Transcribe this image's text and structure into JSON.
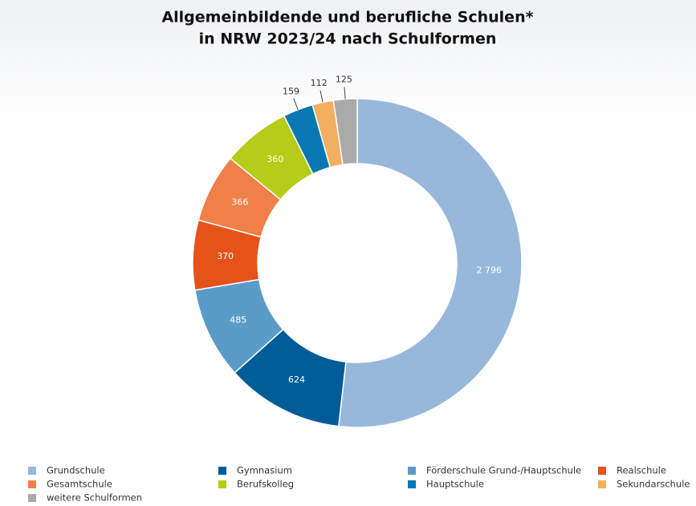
{
  "chart_data": {
    "type": "donut",
    "title": [
      "Allgemeinbildende und berufliche Schulen*",
      "in NRW 2023/24 nach Schulformen"
    ],
    "categories": [
      "Grundschule",
      "Gymnasium",
      "Förderschule Grund-/Hauptschule",
      "Realschule",
      "Gesamtschule",
      "Berufskolleg",
      "Hauptschule",
      "Sekundarschule",
      "weitere Schulformen"
    ],
    "values": [
      2796,
      624,
      485,
      370,
      366,
      360,
      159,
      112,
      125
    ],
    "value_labels": [
      "2 796",
      "624",
      "485",
      "370",
      "366",
      "360",
      "159",
      "112",
      "125"
    ],
    "colors": [
      "#97b8da",
      "#005c99",
      "#5b9bc8",
      "#e5531a",
      "#ee8048",
      "#b5cc18",
      "#0878b3",
      "#f4ae60",
      "#aaaaaa"
    ],
    "legend": "bottom"
  }
}
